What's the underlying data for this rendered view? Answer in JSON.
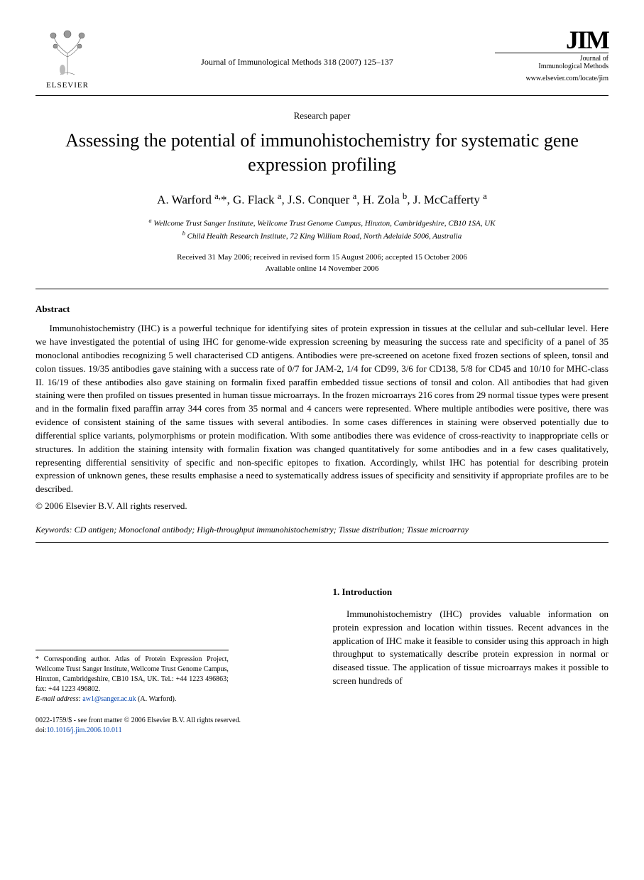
{
  "header": {
    "publisher": "ELSEVIER",
    "journal_ref": "Journal of Immunological Methods 318 (2007) 125–137",
    "journal_abbrev": "JIM",
    "journal_full": "Journal of\nImmunological Methods",
    "journal_url": "www.elsevier.com/locate/jim"
  },
  "article": {
    "type": "Research paper",
    "title": "Assessing the potential of immunohistochemistry for systematic gene expression profiling",
    "authors_html": "A. Warford <sup>a,</sup>*, G. Flack <sup>a</sup>, J.S. Conquer <sup>a</sup>, H. Zola <sup>b</sup>, J. McCafferty <sup>a</sup>",
    "affiliations": {
      "a": "Wellcome Trust Sanger Institute, Wellcome Trust Genome Campus, Hinxton, Cambridgeshire, CB10 1SA, UK",
      "b": "Child Health Research Institute, 72 King William Road, North Adelaide 5006, Australia"
    },
    "dates_line1": "Received 31 May 2006; received in revised form 15 August 2006; accepted 15 October 2006",
    "dates_line2": "Available online 14 November 2006"
  },
  "abstract": {
    "heading": "Abstract",
    "body": "Immunohistochemistry (IHC) is a powerful technique for identifying sites of protein expression in tissues at the cellular and sub-cellular level. Here we have investigated the potential of using IHC for genome-wide expression screening by measuring the success rate and specificity of a panel of 35 monoclonal antibodies recognizing 5 well characterised CD antigens. Antibodies were pre-screened on acetone fixed frozen sections of spleen, tonsil and colon tissues. 19/35 antibodies gave staining with a success rate of 0/7 for JAM-2, 1/4 for CD99, 3/6 for CD138, 5/8 for CD45 and 10/10 for MHC-class II. 16/19 of these antibodies also gave staining on formalin fixed paraffin embedded tissue sections of tonsil and colon. All antibodies that had given staining were then profiled on tissues presented in human tissue microarrays. In the frozen microarrays 216 cores from 29 normal tissue types were present and in the formalin fixed paraffin array 344 cores from 35 normal and 4 cancers were represented. Where multiple antibodies were positive, there was evidence of consistent staining of the same tissues with several antibodies. In some cases differences in staining were observed potentially due to differential splice variants, polymorphisms or protein modification. With some antibodies there was evidence of cross-reactivity to inappropriate cells or structures. In addition the staining intensity with formalin fixation was changed quantitatively for some antibodies and in a few cases qualitatively, representing differential sensitivity of specific and non-specific epitopes to fixation. Accordingly, whilst IHC has potential for describing protein expression of unknown genes, these results emphasise a need to systematically address issues of specificity and sensitivity if appropriate profiles are to be described.",
    "copyright": "© 2006 Elsevier B.V. All rights reserved."
  },
  "keywords": {
    "label": "Keywords:",
    "text": "CD antigen; Monoclonal antibody; High-throughput immunohistochemistry; Tissue distribution; Tissue microarray"
  },
  "intro": {
    "heading": "1. Introduction",
    "para": "Immunohistochemistry (IHC) provides valuable information on protein expression and location within tissues. Recent advances in the application of IHC make it feasible to consider using this approach in high throughput to systematically describe protein expression in normal or diseased tissue. The application of tissue microarrays makes it possible to screen hundreds of"
  },
  "corresponding": {
    "text": "* Corresponding author. Atlas of Protein Expression Project, Wellcome Trust Sanger Institute, Wellcome Trust Genome Campus, Hinxton, Cambridgeshire, CB10 1SA, UK. Tel.: +44 1223 496863; fax: +44 1223 496802.",
    "email_label": "E-mail address:",
    "email": "aw1@sanger.ac.uk",
    "email_name": "(A. Warford)."
  },
  "footer": {
    "line1": "0022-1759/$ - see front matter © 2006 Elsevier B.V. All rights reserved.",
    "doi_label": "doi:",
    "doi": "10.1016/j.jim.2006.10.011"
  },
  "colors": {
    "link": "#0645ad",
    "text": "#000000",
    "bg": "#ffffff",
    "rule": "#000000"
  },
  "fonts": {
    "body_family": "Georgia, Times New Roman, serif",
    "title_size_pt": 20,
    "body_size_pt": 10,
    "small_size_pt": 8
  }
}
